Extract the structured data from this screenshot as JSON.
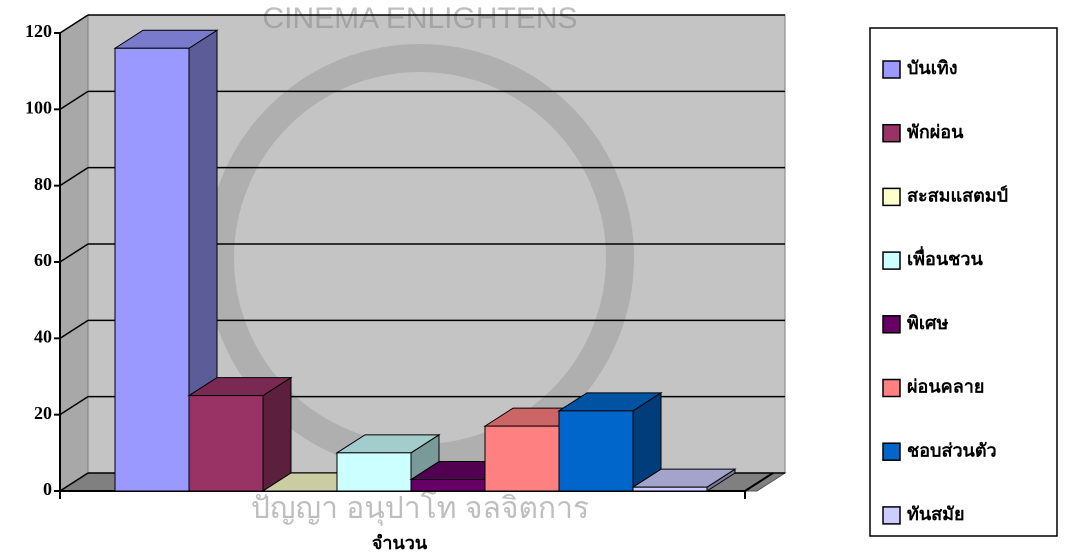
{
  "chart_data": {
    "type": "bar3d",
    "categories": [
      "จำนวน"
    ],
    "series": [
      {
        "name": "บันเทิง",
        "color": "#9999ff",
        "values": [
          116
        ]
      },
      {
        "name": "พักผ่อน",
        "color": "#993366",
        "values": [
          25
        ]
      },
      {
        "name": "สะสมแสตมป์",
        "color": "#ffffcc",
        "values": [
          0
        ]
      },
      {
        "name": "เพื่อนชวน",
        "color": "#ccffff",
        "values": [
          10
        ]
      },
      {
        "name": "พิเศษ",
        "color": "#660066",
        "values": [
          3
        ]
      },
      {
        "name": "ผ่อนคลาย",
        "color": "#ff8080",
        "values": [
          17
        ]
      },
      {
        "name": "ชอบส่วนตัว",
        "color": "#0066cc",
        "values": [
          21
        ]
      },
      {
        "name": "ทันสมัย",
        "color": "#ccccff",
        "values": [
          1
        ]
      }
    ],
    "ylim": [
      0,
      120
    ],
    "yticks": [
      0,
      20,
      40,
      60,
      80,
      100,
      120
    ],
    "grid": true,
    "legend": "right",
    "watermark": [
      "CINEMA ENLIGHTENS",
      "ปัญญา อนุปาโท จลจิตการ"
    ]
  }
}
